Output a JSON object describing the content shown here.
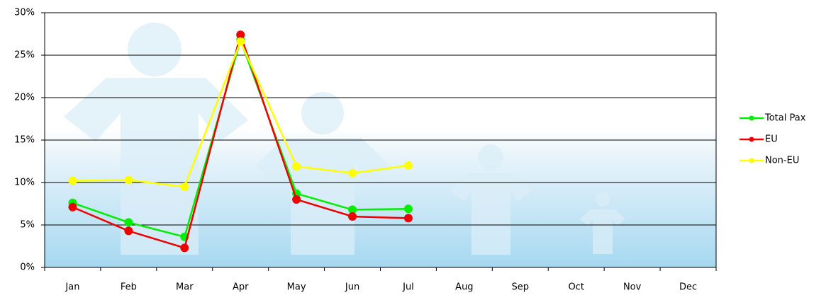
{
  "chart_data": {
    "type": "line",
    "categories": [
      "Jan",
      "Feb",
      "Mar",
      "Apr",
      "May",
      "Jun",
      "Jul",
      "Aug",
      "Sep",
      "Oct",
      "Nov",
      "Dec"
    ],
    "series": [
      {
        "name": "Total Pax",
        "color": "#00ee00",
        "values": [
          7.6,
          5.3,
          3.6,
          26.8,
          8.7,
          6.8,
          6.9,
          null,
          null,
          null,
          null,
          null
        ]
      },
      {
        "name": "EU",
        "color": "#ee0000",
        "values": [
          7.1,
          4.3,
          2.3,
          27.4,
          8.0,
          6.0,
          5.8,
          null,
          null,
          null,
          null,
          null
        ]
      },
      {
        "name": "Non-EU",
        "color": "#ffff00",
        "values": [
          10.2,
          10.3,
          9.5,
          26.6,
          11.9,
          11.1,
          12.0,
          null,
          null,
          null,
          null,
          null
        ]
      }
    ],
    "ylim": [
      0,
      30
    ],
    "yticks": [
      {
        "value": 0,
        "label": "0%"
      },
      {
        "value": 5,
        "label": "5%"
      },
      {
        "value": 10,
        "label": "10%"
      },
      {
        "value": 15,
        "label": "15%"
      },
      {
        "value": 20,
        "label": "20%"
      },
      {
        "value": 25,
        "label": "25%"
      },
      {
        "value": 30,
        "label": "30%"
      }
    ],
    "grid": true,
    "legend": "right"
  }
}
